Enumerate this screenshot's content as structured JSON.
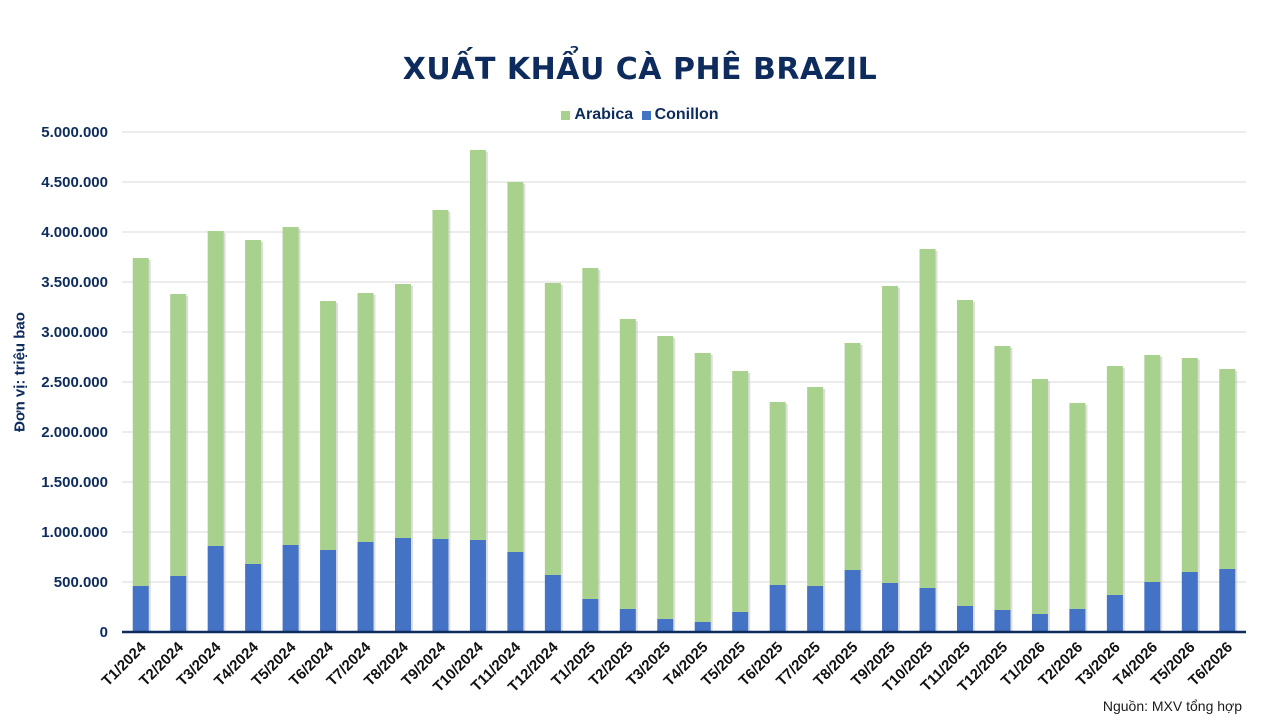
{
  "chart_data": {
    "type": "bar",
    "stacked": true,
    "title": "XUẤT KHẨU CÀ PHÊ BRAZIL",
    "ylabel": "Đơn vị: triệu bao",
    "xlabel": "",
    "ylim": [
      0,
      5000000
    ],
    "yticks": [
      0,
      500000,
      1000000,
      1500000,
      2000000,
      2500000,
      3000000,
      3500000,
      4000000,
      4500000,
      5000000
    ],
    "ytick_labels": [
      "0",
      "500.000",
      "1.000.000",
      "1.500.000",
      "2.000.000",
      "2.500.000",
      "3.000.000",
      "3.500.000",
      "4.000.000",
      "4.500.000",
      "5.000.000"
    ],
    "grid": true,
    "legend_position": "top-center",
    "categories": [
      "T1/2024",
      "T2/2024",
      "T3/2024",
      "T4/2024",
      "T5/2024",
      "T6/2024",
      "T7/2024",
      "T8/2024",
      "T9/2024",
      "T10/2024",
      "T11/2024",
      "T12/2024",
      "T1/2025",
      "T2/2025",
      "T3/2025",
      "T4/2025",
      "T5/2025",
      "T6/2025",
      "T7/2025",
      "T8/2025",
      "T9/2025",
      "T10/2025",
      "T11/2025",
      "T12/2025",
      "T1/2026",
      "T2/2026",
      "T3/2026",
      "T4/2026",
      "T5/2026",
      "T6/2026"
    ],
    "series": [
      {
        "name": "Conillon",
        "color": "#4472c4",
        "values": [
          460000,
          560000,
          860000,
          680000,
          870000,
          820000,
          900000,
          940000,
          930000,
          920000,
          800000,
          570000,
          330000,
          230000,
          130000,
          100000,
          200000,
          470000,
          460000,
          620000,
          490000,
          440000,
          260000,
          220000,
          180000,
          230000,
          370000,
          500000,
          600000,
          630000
        ]
      },
      {
        "name": "Arabica",
        "color": "#a9d18e",
        "values": [
          3280000,
          2820000,
          3150000,
          3240000,
          3180000,
          2490000,
          2490000,
          2540000,
          3290000,
          3900000,
          3700000,
          2920000,
          3310000,
          2900000,
          2830000,
          2690000,
          2410000,
          1830000,
          1990000,
          2270000,
          2970000,
          3390000,
          3060000,
          2640000,
          2350000,
          2060000,
          2290000,
          2270000,
          2140000,
          2000000
        ]
      }
    ],
    "legend": [
      {
        "name": "Arabica",
        "color": "#a9d18e"
      },
      {
        "name": "Conillon",
        "color": "#4472c4"
      }
    ]
  },
  "source_note": "Nguồn: MXV tổng hợp"
}
